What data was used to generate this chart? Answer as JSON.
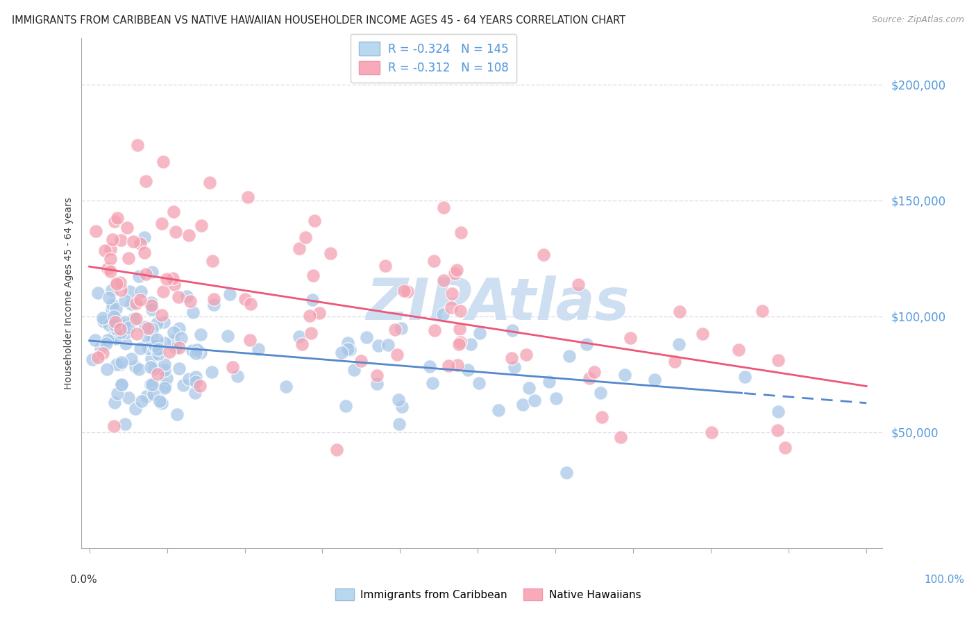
{
  "title": "IMMIGRANTS FROM CARIBBEAN VS NATIVE HAWAIIAN HOUSEHOLDER INCOME AGES 45 - 64 YEARS CORRELATION CHART",
  "source": "Source: ZipAtlas.com",
  "ylabel": "Householder Income Ages 45 - 64 years",
  "y_tick_values": [
    50000,
    100000,
    150000,
    200000
  ],
  "ylim": [
    0,
    220000
  ],
  "xlim": [
    -0.01,
    1.02
  ],
  "legend_blue_R": "-0.324",
  "legend_blue_N": "145",
  "legend_pink_R": "-0.312",
  "legend_pink_N": "108",
  "blue_color": "#A8C8E8",
  "pink_color": "#F4A0B0",
  "trendline_blue_color": "#5588CC",
  "trendline_pink_color": "#EE5577",
  "watermark_color": "#C8DCF0",
  "background_color": "#FFFFFF",
  "grid_color": "#DDDDEE",
  "ytick_color": "#5599DD",
  "xtick_label_color_left": "#333333",
  "xtick_label_color_right": "#5599DD"
}
